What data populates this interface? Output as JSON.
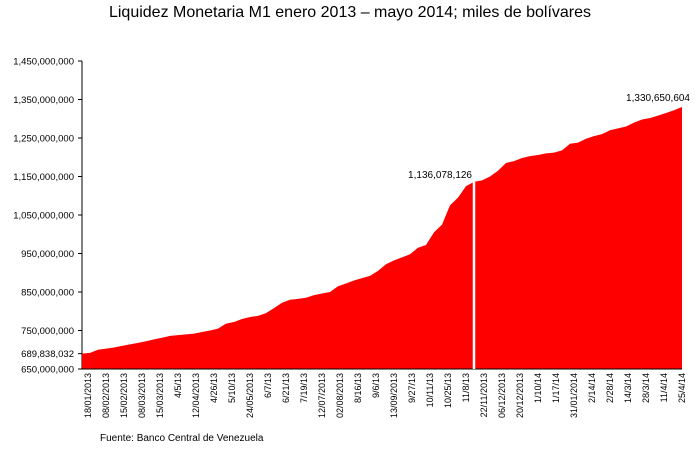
{
  "chart_data": {
    "type": "area",
    "title": "Liquidez Monetaria M1 enero 2013 – mayo 2014; miles de bolívares",
    "source": "Fuente: Banco Central de Venezuela",
    "xlabel": "",
    "ylabel": "",
    "ylim": [
      650000000,
      1450000000
    ],
    "grid": false,
    "legend": "none",
    "color": "#ff0000",
    "y_ticks": [
      {
        "value": 650000000,
        "label": "650,000,000"
      },
      {
        "value": 689838032,
        "label": "689,838,032"
      },
      {
        "value": 750000000,
        "label": "750,000,000"
      },
      {
        "value": 850000000,
        "label": "850,000,000"
      },
      {
        "value": 950000000,
        "label": "950,000,000"
      },
      {
        "value": 1050000000,
        "label": "1,050,000,000"
      },
      {
        "value": 1150000000,
        "label": "1,150,000,000"
      },
      {
        "value": 1250000000,
        "label": "1,250,000,000"
      },
      {
        "value": 1350000000,
        "label": "1,350,000,000"
      },
      {
        "value": 1450000000,
        "label": "1,450,000,000"
      }
    ],
    "x_ticks": [
      "18/01/2013",
      "08/02/2013",
      "15/02/2013",
      "08/03/2013",
      "15/03/2013",
      "4/5/13",
      "12/04/2013",
      "4/26/13",
      "5/10/13",
      "24/05/2013",
      "6/7/13",
      "6/21/13",
      "7/19/13",
      "12/07/2013",
      "02/08/2013",
      "8/16/13",
      "9/6/13",
      "13/09/2013",
      "9/27/13",
      "10/11/13",
      "10/25/13",
      "11/8/13",
      "22/11/2013",
      "06/12/2013",
      "20/12/2013",
      "1/10/14",
      "1/17/14",
      "31/01/2014",
      "2/14/14",
      "2/28/14",
      "14/3/14",
      "28/3/14",
      "11/4/14",
      "25/4/14"
    ],
    "values": [
      689838032,
      692000000,
      700000000,
      703000000,
      706000000,
      710000000,
      714000000,
      718000000,
      722000000,
      727000000,
      731000000,
      736000000,
      738000000,
      740000000,
      742000000,
      746000000,
      750000000,
      755000000,
      768000000,
      772000000,
      780000000,
      785000000,
      788000000,
      795000000,
      808000000,
      822000000,
      830000000,
      832000000,
      835000000,
      842000000,
      846000000,
      850000000,
      865000000,
      872000000,
      880000000,
      886000000,
      892000000,
      905000000,
      922000000,
      932000000,
      940000000,
      948000000,
      965000000,
      972000000,
      1005000000,
      1025000000,
      1075000000,
      1095000000,
      1125000000,
      1136078126,
      1140000000,
      1150000000,
      1165000000,
      1185000000,
      1190000000,
      1198000000,
      1203000000,
      1206000000,
      1210000000,
      1212000000,
      1218000000,
      1235000000,
      1238000000,
      1248000000,
      1255000000,
      1260000000,
      1270000000,
      1275000000,
      1280000000,
      1290000000,
      1298000000,
      1302000000,
      1308000000,
      1315000000,
      1322000000,
      1330650604
    ],
    "annotations": [
      {
        "index": 49,
        "value": 1136078126,
        "label": "1,136,078,126",
        "marker": "white-line"
      },
      {
        "index": 75,
        "value": 1330650604,
        "label": "1,330,650,604"
      }
    ]
  }
}
